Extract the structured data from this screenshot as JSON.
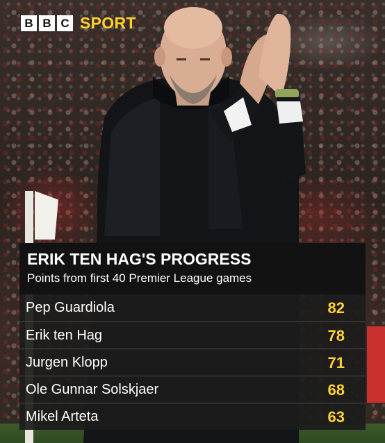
{
  "brand": {
    "letters": [
      "B",
      "B",
      "C"
    ],
    "section": "SPORT",
    "accent_color": "#ffd230"
  },
  "chart_data": {
    "type": "table",
    "title": "ERIK TEN HAG'S PROGRESS",
    "subtitle": "Points from first 40 Premier League games",
    "categories": [
      "Pep Guardiola",
      "Erik ten Hag",
      "Jurgen Klopp",
      "Ole Gunnar Solskjaer",
      "Mikel Arteta"
    ],
    "values": [
      82,
      78,
      71,
      68,
      63
    ],
    "value_color": "#ffd230"
  }
}
